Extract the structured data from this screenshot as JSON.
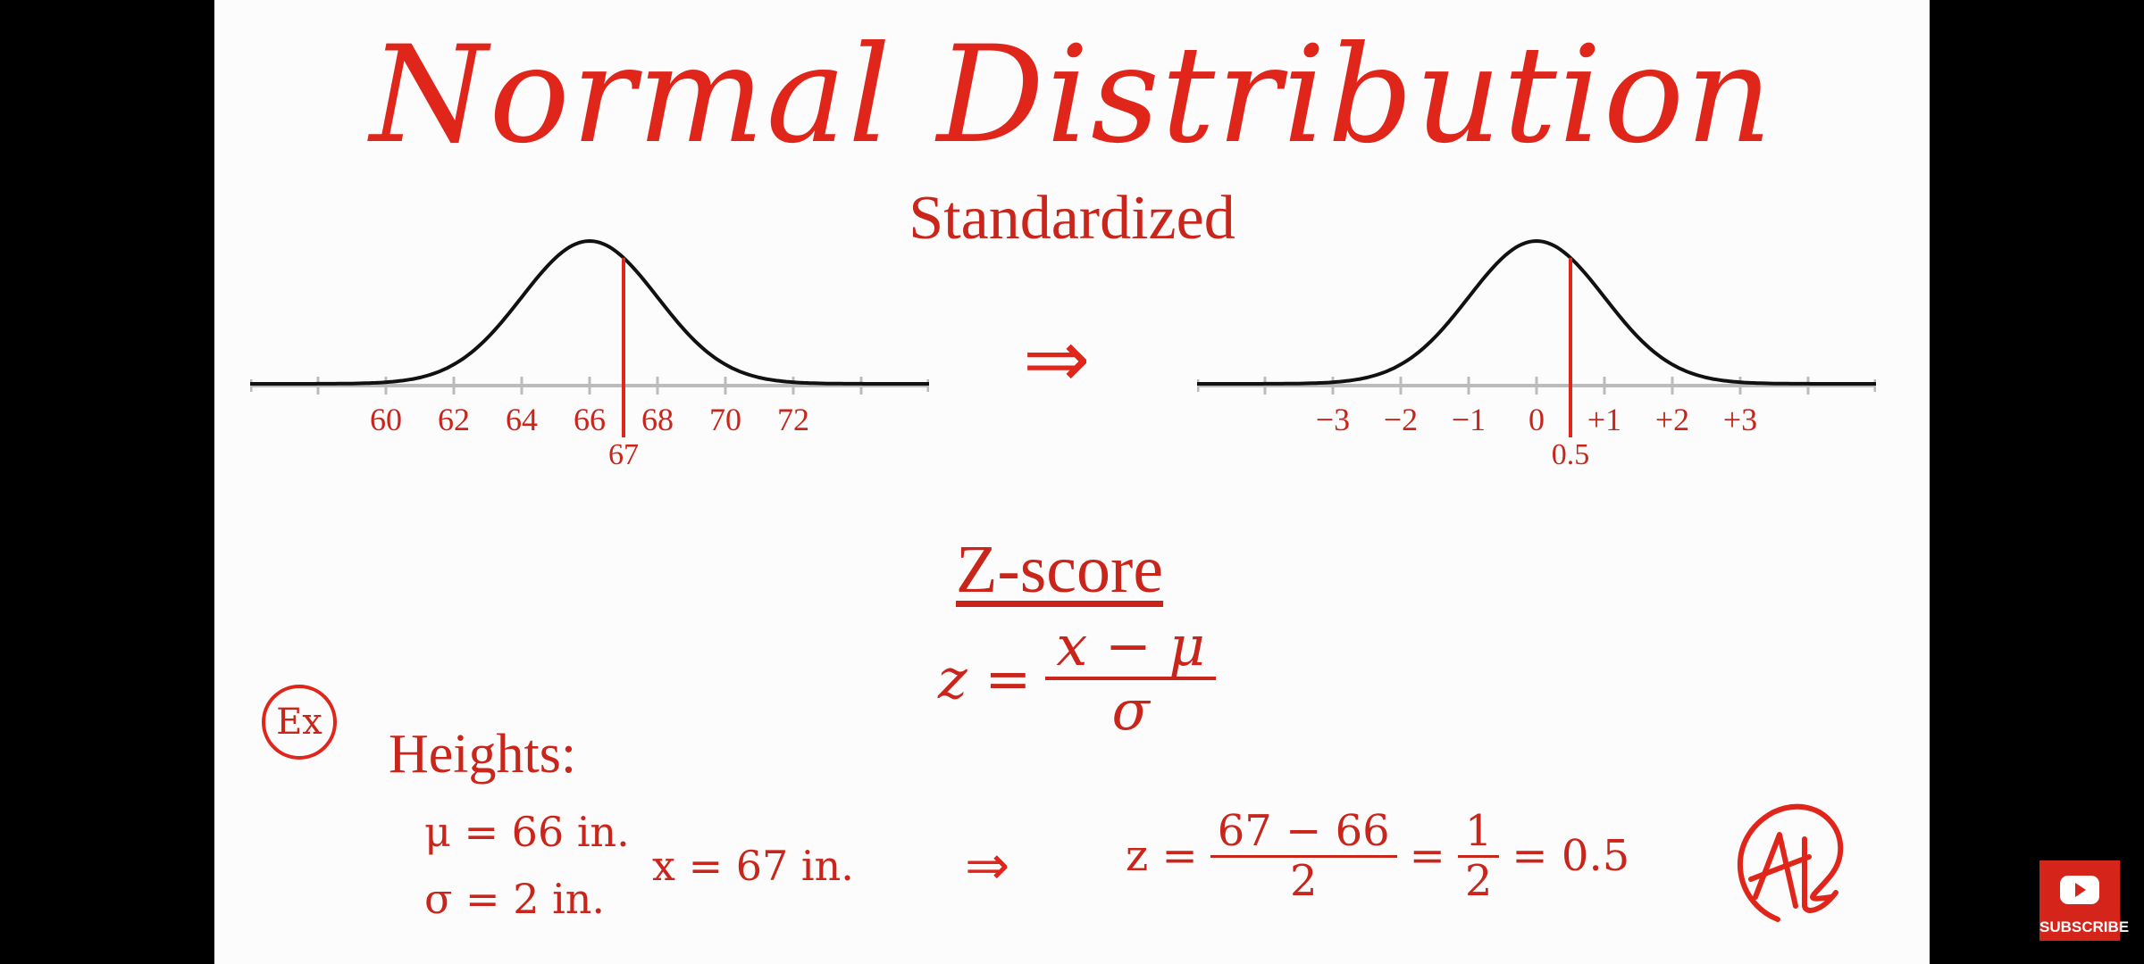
{
  "slide": {
    "title": "Normal Distribution",
    "subtitle": "Standardized",
    "transform_arrow": "⇒",
    "zscore": {
      "heading": "Z-score",
      "lhs": "z =",
      "numerator": "x − μ",
      "denominator": "σ"
    },
    "example": {
      "badge": "Ex",
      "label": "Heights:",
      "mu": "μ = 66 in.",
      "sigma": "σ = 2 in.",
      "x": "x = 67 in.",
      "arrow": "⇒",
      "calc_lhs": "z =",
      "calc_num": "67 − 66",
      "calc_den": "2",
      "calc_eq1": "=",
      "calc_num2": "1",
      "calc_den2": "2",
      "calc_result": "= 0.5"
    },
    "logo_icon": "at-monogram-icon"
  },
  "chart_data": [
    {
      "type": "line",
      "curve": "normal",
      "mean": 66,
      "sd": 2,
      "xlim": [
        56,
        76
      ],
      "ticks": [
        {
          "value": 58,
          "label": ""
        },
        {
          "value": 60,
          "label": "60"
        },
        {
          "value": 62,
          "label": "62"
        },
        {
          "value": 64,
          "label": "64"
        },
        {
          "value": 66,
          "label": "66"
        },
        {
          "value": 68,
          "label": "68"
        },
        {
          "value": 70,
          "label": "70"
        },
        {
          "value": 72,
          "label": "72"
        },
        {
          "value": 74,
          "label": ""
        }
      ],
      "marker": {
        "value": 67,
        "label": "67"
      },
      "colors": {
        "curve": "#111111",
        "marker": "#e0251b",
        "axis": "#bbbbbb",
        "label": "#c9251b"
      }
    },
    {
      "type": "line",
      "curve": "normal",
      "mean": 0,
      "sd": 1,
      "xlim": [
        -5,
        5
      ],
      "ticks": [
        {
          "value": -4,
          "label": ""
        },
        {
          "value": -3,
          "label": "−3"
        },
        {
          "value": -2,
          "label": "−2"
        },
        {
          "value": -1,
          "label": "−1"
        },
        {
          "value": 0,
          "label": "0"
        },
        {
          "value": 1,
          "label": "+1"
        },
        {
          "value": 2,
          "label": "+2"
        },
        {
          "value": 3,
          "label": "+3"
        },
        {
          "value": 4,
          "label": ""
        }
      ],
      "marker": {
        "value": 0.5,
        "label": "0.5"
      },
      "colors": {
        "curve": "#111111",
        "marker": "#e0251b",
        "axis": "#bbbbbb",
        "label": "#c9251b"
      }
    }
  ],
  "overlay": {
    "subscribe_label": "SUBSCRIBE",
    "subscribe_icon": "youtube-play-icon"
  }
}
